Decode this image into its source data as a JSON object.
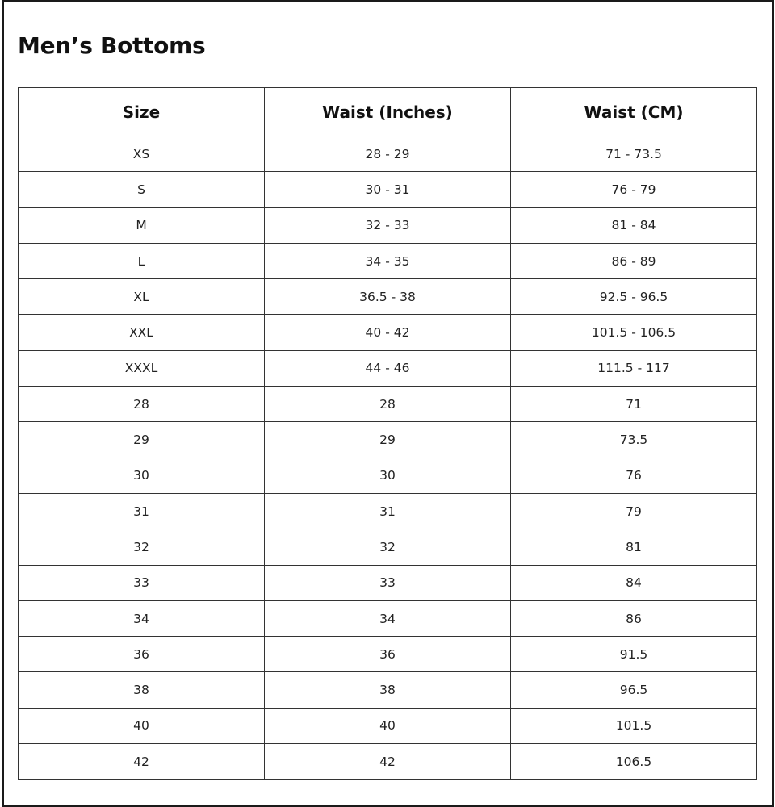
{
  "title": "Men’s Bottoms",
  "columns": [
    "Size",
    "Waist (Inches)",
    "Waist (CM)"
  ],
  "rows": [
    [
      "XS",
      "28 - 29",
      "71 - 73.5"
    ],
    [
      "S",
      "30 - 31",
      "76 - 79"
    ],
    [
      "M",
      "32 - 33",
      "81 - 84"
    ],
    [
      "L",
      "34 - 35",
      "86 - 89"
    ],
    [
      "XL",
      "36.5 - 38",
      "92.5 - 96.5"
    ],
    [
      "XXL",
      "40 - 42",
      "101.5 - 106.5"
    ],
    [
      "XXXL",
      "44 - 46",
      "111.5 - 117"
    ],
    [
      "28",
      "28",
      "71"
    ],
    [
      "29",
      "29",
      "73.5"
    ],
    [
      "30",
      "30",
      "76"
    ],
    [
      "31",
      "31",
      "79"
    ],
    [
      "32",
      "32",
      "81"
    ],
    [
      "33",
      "33",
      "84"
    ],
    [
      "34",
      "34",
      "86"
    ],
    [
      "36",
      "36",
      "91.5"
    ],
    [
      "38",
      "38",
      "96.5"
    ],
    [
      "40",
      "40",
      "101.5"
    ],
    [
      "42",
      "42",
      "106.5"
    ]
  ]
}
